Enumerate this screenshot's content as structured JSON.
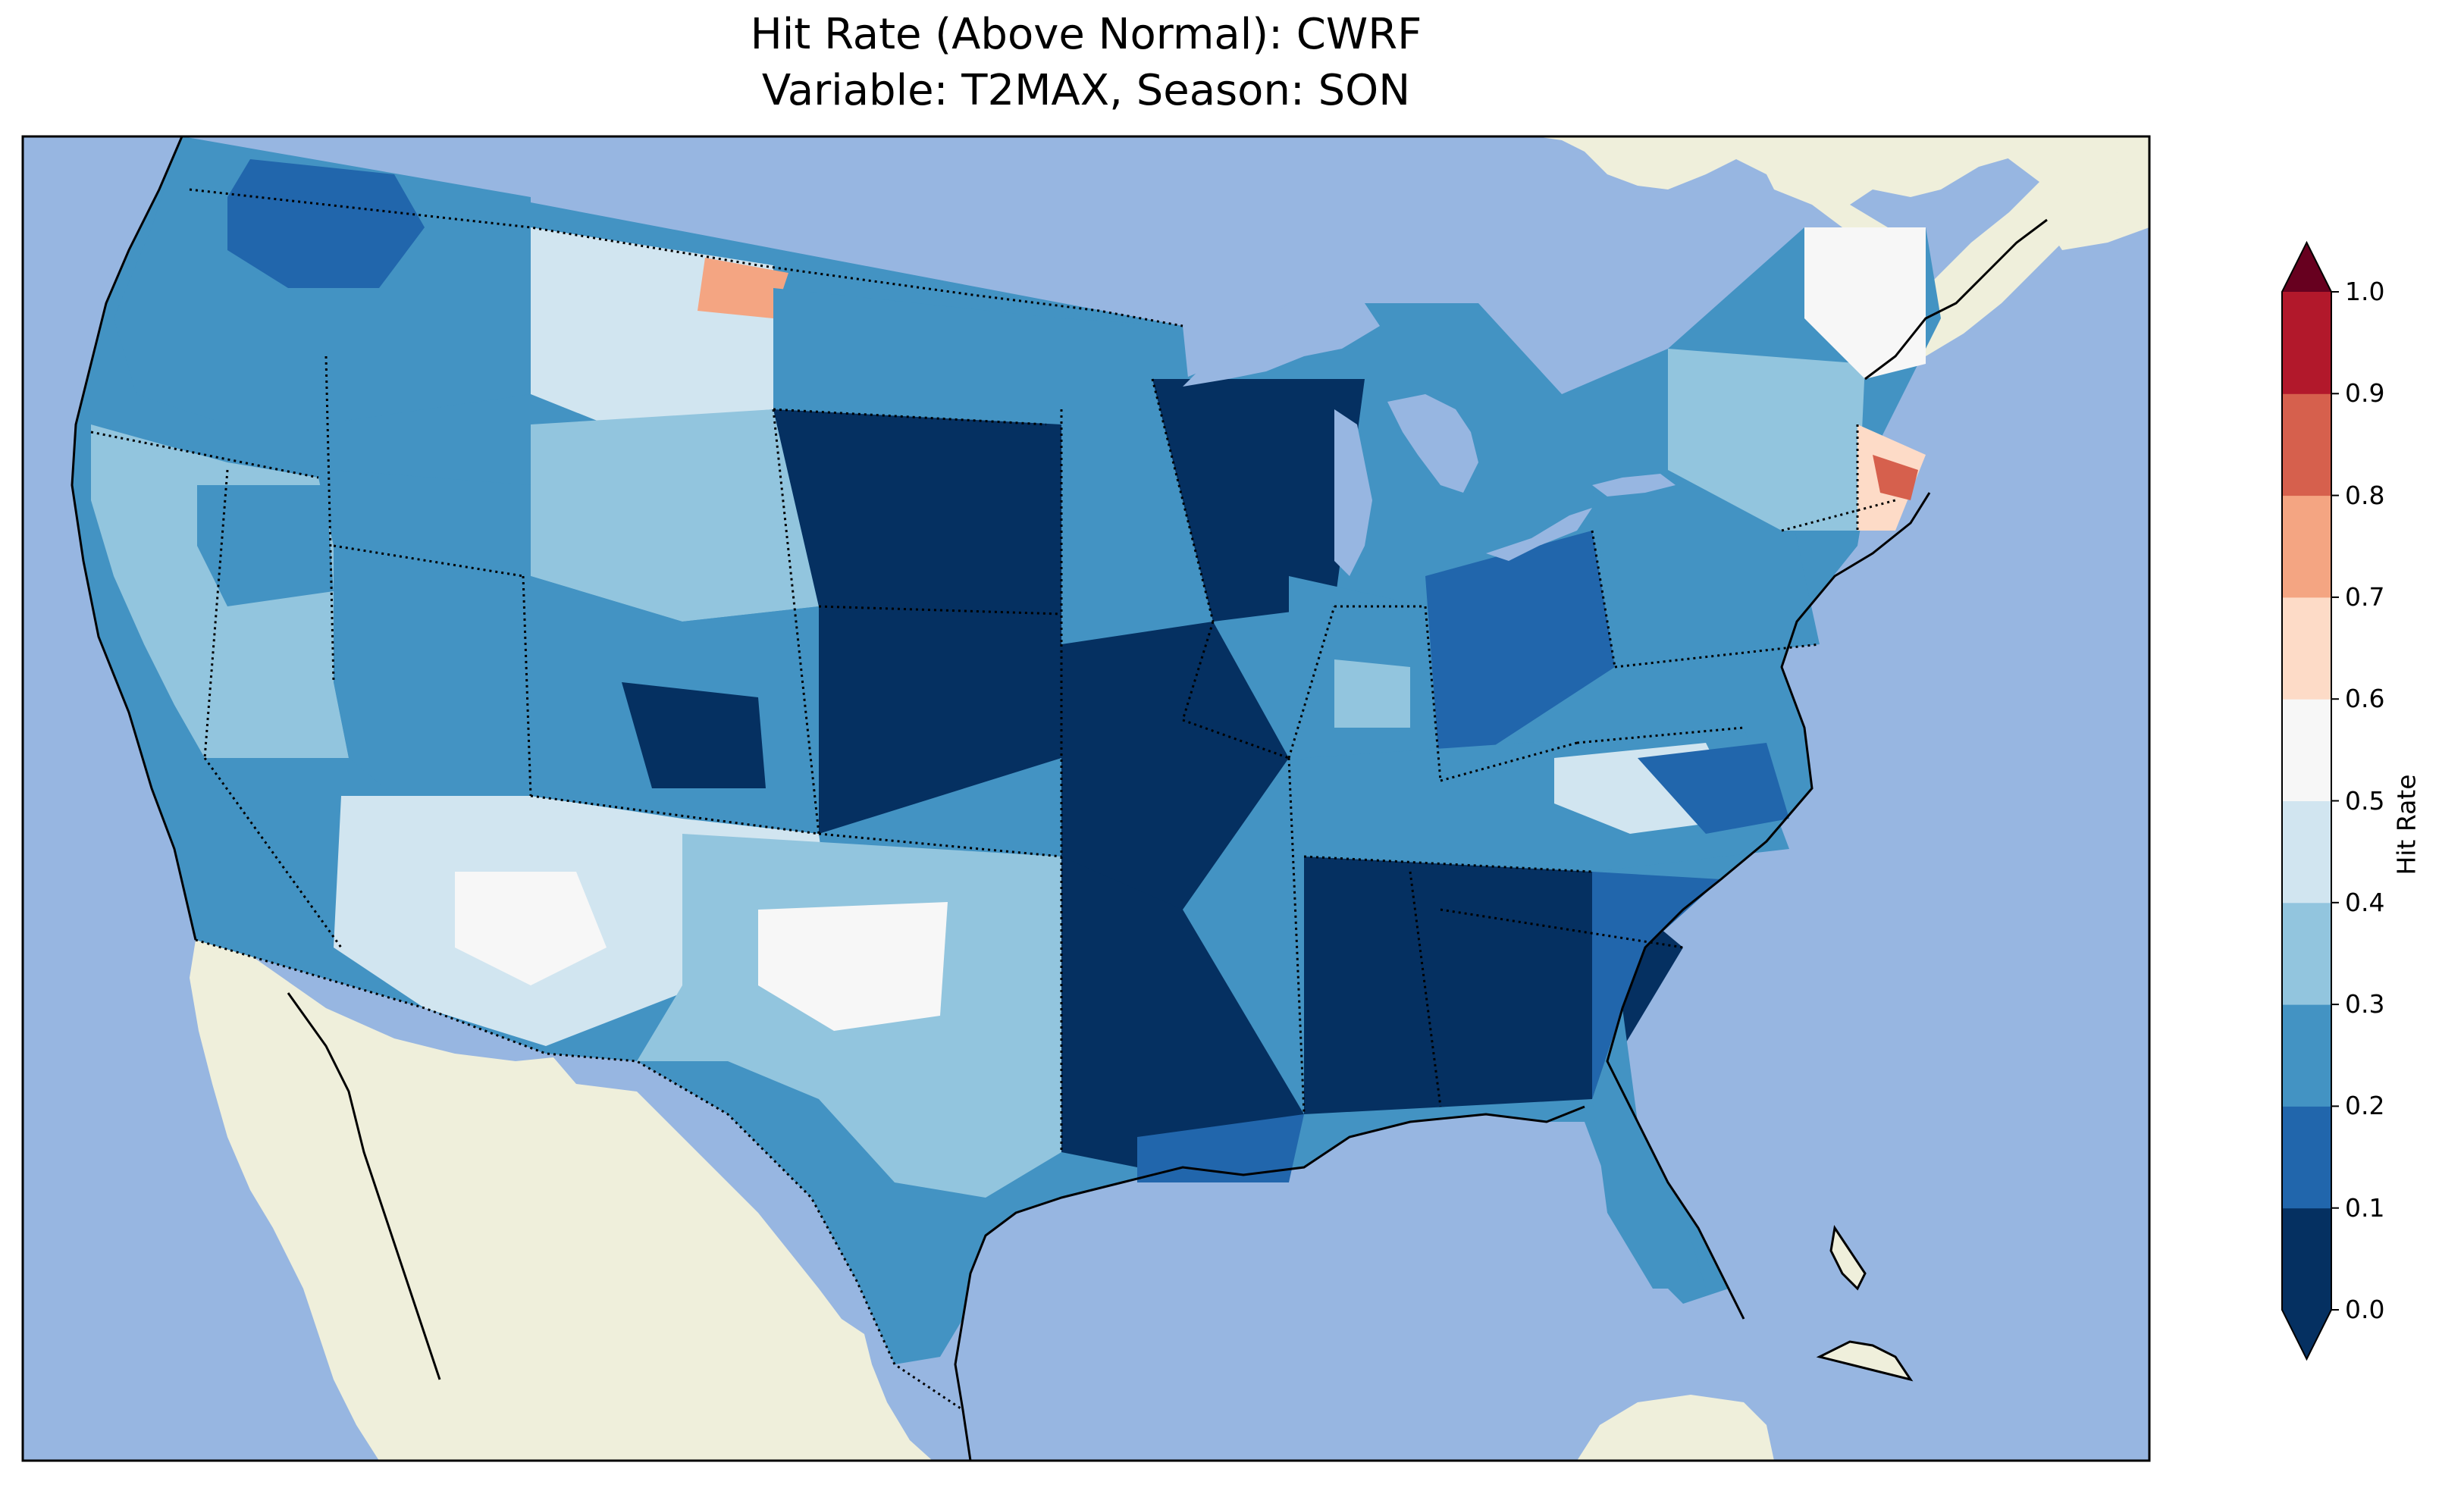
{
  "title": {
    "line1": "Hit Rate (Above Normal): CWRF",
    "line2": "Variable: T2MAX, Season: SON"
  },
  "colors": {
    "ocean": "#97b6e1",
    "land": "#efefdb",
    "lakes": "#97b6e1",
    "frame": "#000000",
    "state_border": "#000000"
  },
  "map": {
    "variable": "T2MAX",
    "season": "SON",
    "model": "CWRF",
    "metric": "Hit Rate (Above Normal)"
  },
  "colorbar": {
    "label": "Hit Rate",
    "extend": "both",
    "ticks": [
      "0.0",
      "0.1",
      "0.2",
      "0.3",
      "0.4",
      "0.5",
      "0.6",
      "0.7",
      "0.8",
      "0.9",
      "1.0"
    ],
    "bins": [
      {
        "min": 0.0,
        "max": 0.1,
        "color": "#053061"
      },
      {
        "min": 0.1,
        "max": 0.2,
        "color": "#2166ac"
      },
      {
        "min": 0.2,
        "max": 0.3,
        "color": "#4393c3"
      },
      {
        "min": 0.3,
        "max": 0.4,
        "color": "#92c5de"
      },
      {
        "min": 0.4,
        "max": 0.5,
        "color": "#d1e5f0"
      },
      {
        "min": 0.5,
        "max": 0.6,
        "color": "#f7f7f7"
      },
      {
        "min": 0.6,
        "max": 0.7,
        "color": "#fddbc7"
      },
      {
        "min": 0.7,
        "max": 0.8,
        "color": "#f4a582"
      },
      {
        "min": 0.8,
        "max": 0.9,
        "color": "#d6604d"
      },
      {
        "min": 0.9,
        "max": 1.0,
        "color": "#b2182b"
      }
    ],
    "under_color": "#053061",
    "over_color": "#67001f"
  }
}
